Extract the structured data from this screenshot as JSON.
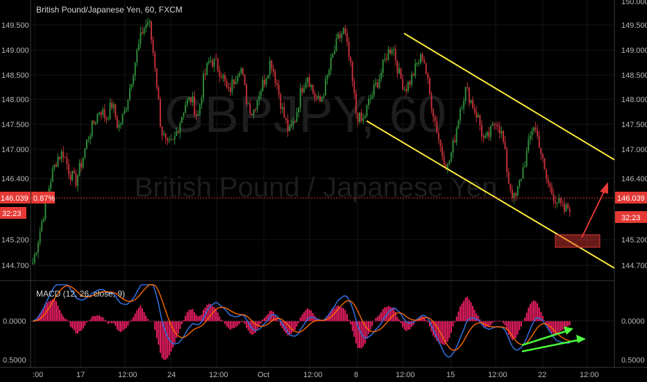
{
  "header": {
    "title": "British Pound/Japanese Yen, 60, FXCM",
    "watermark_symbol": "GBPJPY, 60",
    "watermark_name": "British Pound / Japanese Yen"
  },
  "price_tag": {
    "value": "146.039",
    "change": "0.87%",
    "countdown": "32:23"
  },
  "price_axis": {
    "labels": [
      "150.000",
      "149.500",
      "149.000",
      "148.500",
      "148.000",
      "147.500",
      "147.000",
      "146.400",
      "145.200",
      "144.700"
    ]
  },
  "macd_panel": {
    "label": "MACD (12, 26, close, 9)",
    "axis_labels": [
      "0.0000",
      "0.0000",
      "0.5000",
      "0.5000"
    ]
  },
  "time_axis": {
    "labels": [
      ":00",
      "17",
      "12:00",
      "24",
      "12:00",
      "Oct",
      "12:00",
      "8",
      "12:00",
      "15",
      "12:00",
      "22",
      "12:00"
    ]
  },
  "colors": {
    "background": "#000000",
    "candle_up": "#2e8b3a",
    "candle_down": "#c0303a",
    "channel": "#ffeb3b",
    "price_line": "#e53935",
    "macd_line": "#2f6dd8",
    "signal_line": "#ff6a00",
    "histogram": "#e91e63",
    "arrow_green": "#4cff3c",
    "arrow_red": "#e53935"
  },
  "chart_data": {
    "type": "candlestick",
    "price_range": [
      144.5,
      150.0
    ],
    "close_series": [
      144.75,
      145.3,
      145.9,
      146.5,
      146.9,
      147.0,
      146.6,
      146.4,
      146.8,
      147.3,
      147.6,
      147.9,
      147.7,
      148.0,
      147.5,
      147.8,
      148.4,
      149.0,
      149.5,
      149.7,
      148.8,
      147.5,
      147.1,
      147.2,
      147.6,
      148.0,
      148.1,
      147.7,
      148.5,
      148.9,
      148.8,
      148.6,
      148.2,
      148.5,
      148.8,
      148.1,
      147.8,
      148.2,
      148.5,
      148.9,
      148.4,
      147.8,
      147.4,
      147.7,
      148.3,
      148.6,
      148.2,
      148.0,
      148.4,
      148.9,
      149.3,
      149.5,
      148.8,
      147.8,
      147.6,
      148.0,
      148.3,
      148.6,
      149.0,
      149.2,
      148.6,
      148.3,
      148.5,
      148.8,
      149.0,
      148.2,
      147.6,
      147.0,
      146.7,
      147.2,
      147.9,
      148.3,
      148.0,
      147.7,
      147.2,
      147.4,
      147.7,
      147.3,
      146.4,
      146.0,
      146.5,
      147.0,
      147.6,
      147.2,
      146.5,
      146.2,
      146.0,
      145.8,
      145.9
    ],
    "channel_upper": {
      "start_price": 149.28,
      "end_price": 146.85
    },
    "channel_lower": {
      "start_price": 147.55,
      "end_price": 144.7
    },
    "current_price": 146.039,
    "target_zone": [
      145.1,
      145.32
    ],
    "macd_range": [
      -0.55,
      0.55
    ]
  }
}
